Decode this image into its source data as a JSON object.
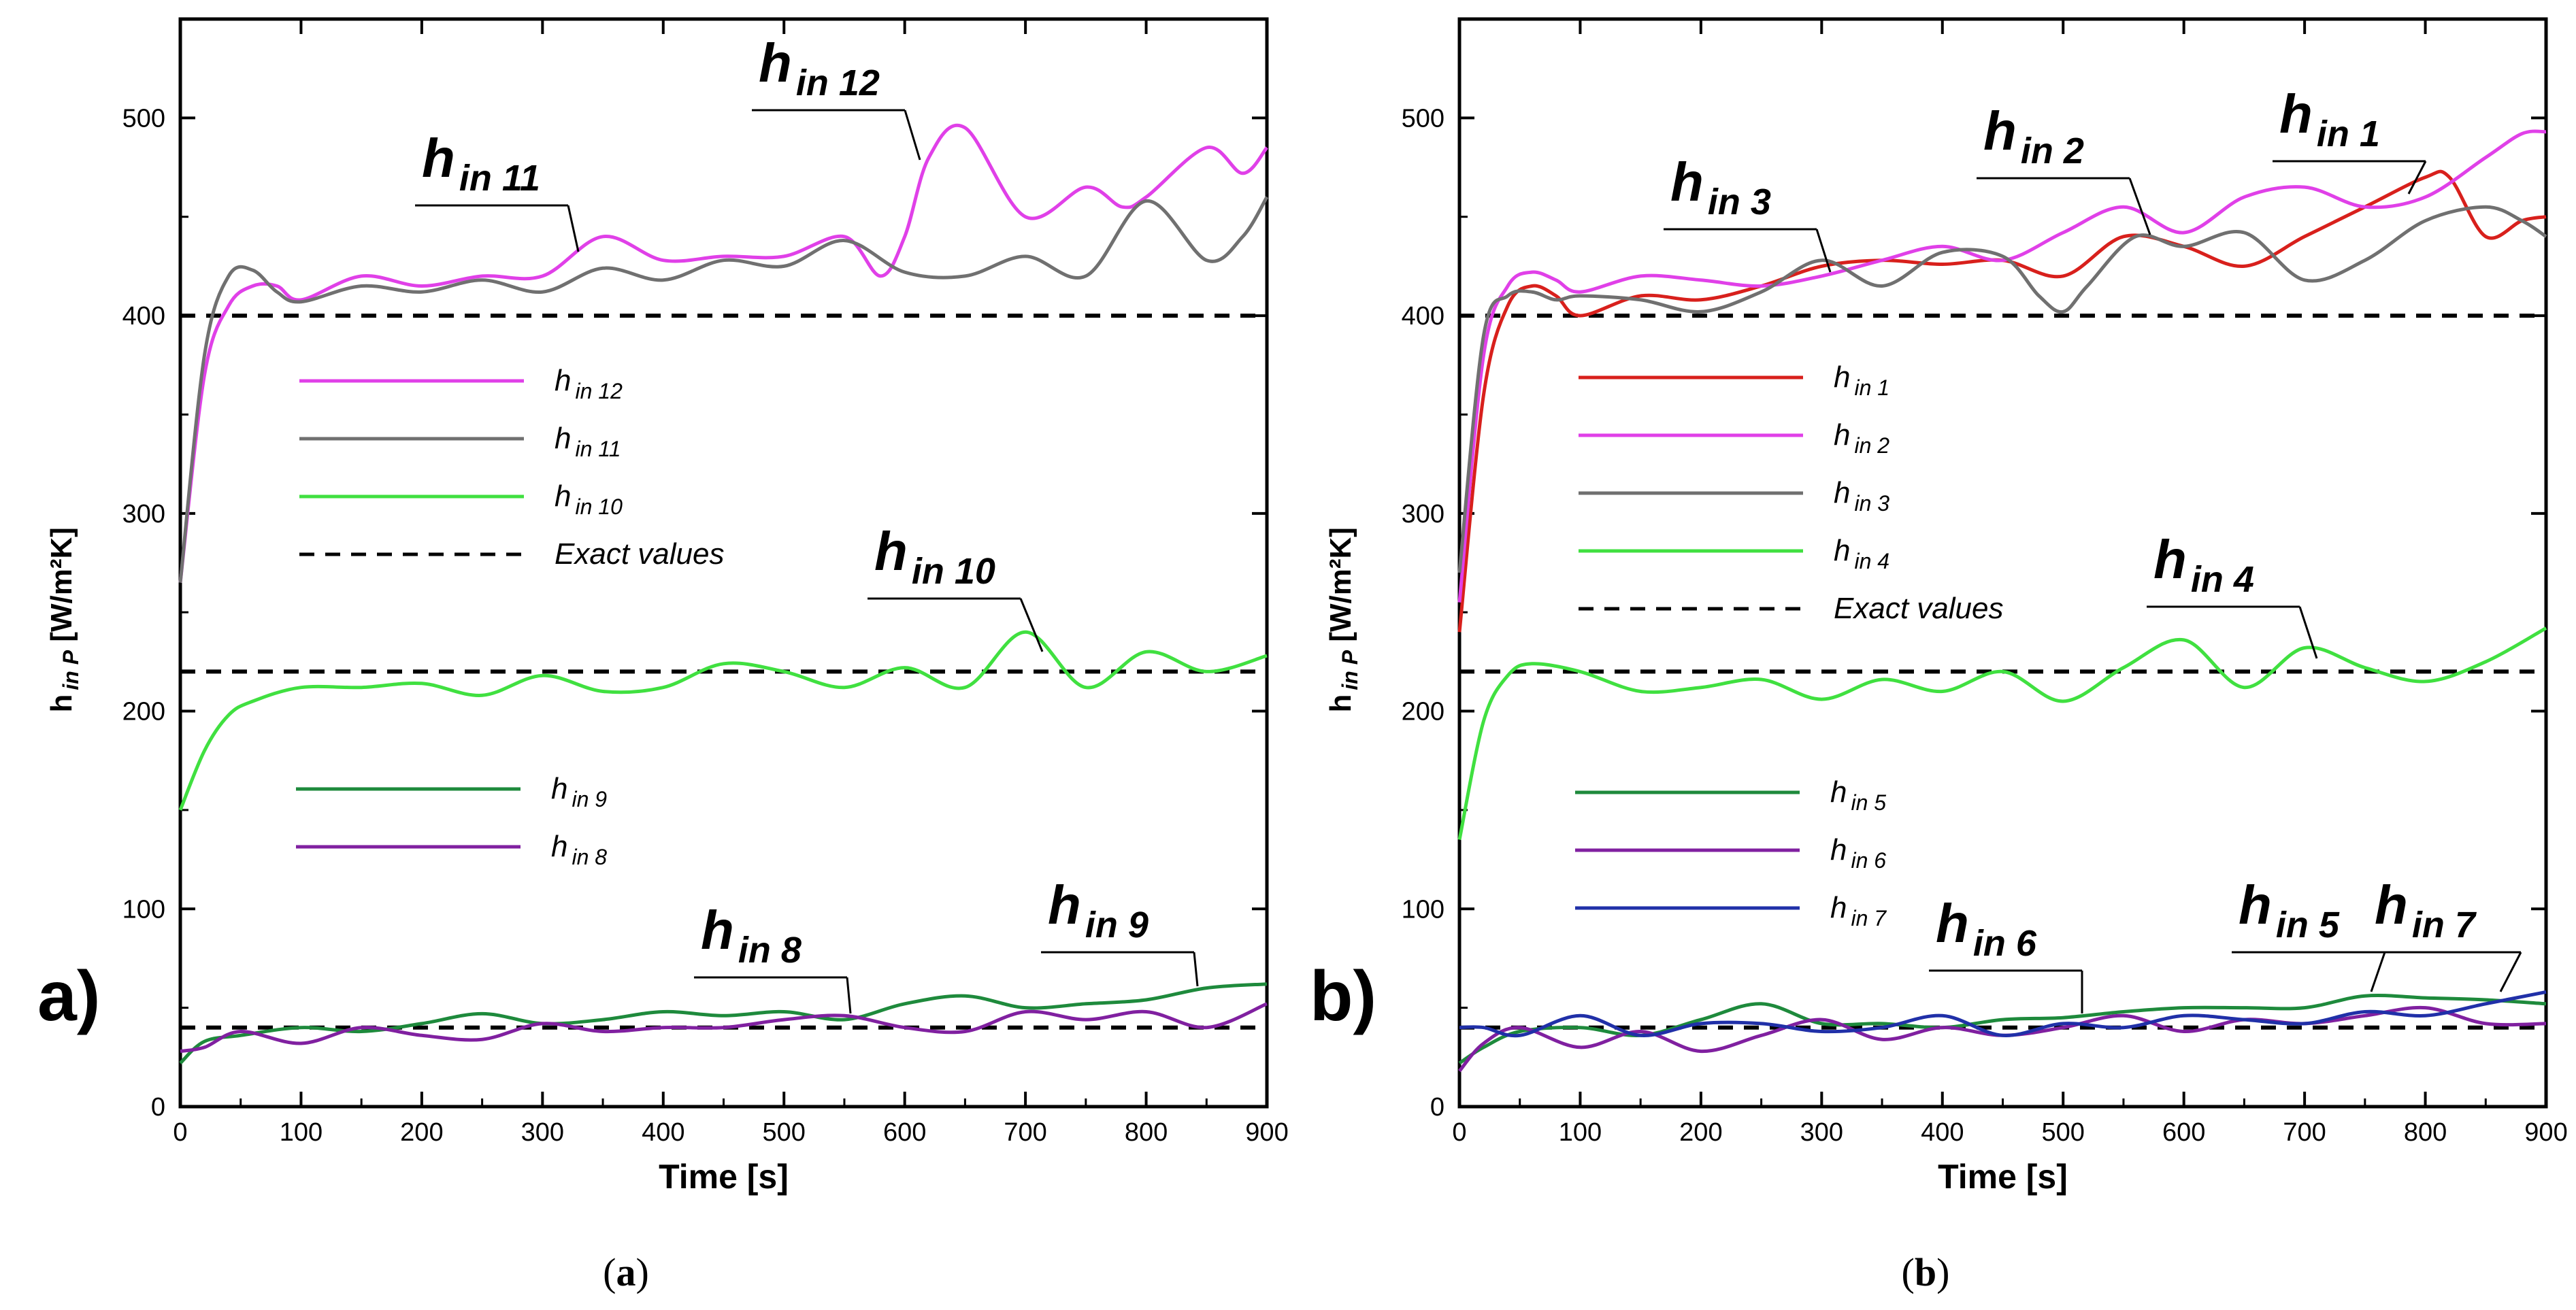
{
  "chart_data": [
    {
      "type": "line",
      "panel_label": "a)",
      "caption": "(a)",
      "xlabel": "Time [s]",
      "ylabel_main": "h",
      "ylabel_sub": "in P",
      "ylabel_unit": " [W/m²K]",
      "xlim": [
        0,
        900
      ],
      "ylim": [
        0,
        550
      ],
      "x_ticks": [
        0,
        100,
        200,
        300,
        400,
        500,
        600,
        700,
        800,
        900
      ],
      "y_ticks": [
        0,
        100,
        200,
        300,
        400,
        500
      ],
      "exact_values": [
        400,
        220,
        40
      ],
      "series": [
        {
          "name": "h_in_12",
          "label_main": "h",
          "label_sub": "in 12",
          "color": "#e040e8",
          "x": [
            0,
            20,
            40,
            60,
            80,
            100,
            150,
            200,
            250,
            300,
            350,
            400,
            450,
            500,
            550,
            580,
            600,
            620,
            650,
            700,
            750,
            780,
            800,
            850,
            880,
            900
          ],
          "y": [
            265,
            370,
            405,
            415,
            415,
            408,
            420,
            415,
            420,
            420,
            440,
            428,
            430,
            430,
            440,
            420,
            440,
            480,
            495,
            450,
            465,
            455,
            460,
            485,
            472,
            485
          ]
        },
        {
          "name": "h_in_11",
          "label_main": "h",
          "label_sub": "in 11",
          "color": "#707070",
          "x": [
            0,
            20,
            40,
            60,
            80,
            100,
            150,
            200,
            250,
            300,
            350,
            400,
            450,
            500,
            550,
            600,
            650,
            700,
            750,
            800,
            850,
            880,
            900
          ],
          "y": [
            265,
            380,
            420,
            423,
            412,
            407,
            415,
            412,
            418,
            412,
            424,
            418,
            428,
            425,
            438,
            422,
            420,
            430,
            420,
            458,
            428,
            440,
            460
          ]
        },
        {
          "name": "h_in_10",
          "label_main": "h",
          "label_sub": "in 10",
          "color": "#40e040",
          "x": [
            0,
            20,
            40,
            60,
            100,
            150,
            200,
            250,
            300,
            350,
            400,
            450,
            500,
            550,
            600,
            650,
            700,
            750,
            800,
            850,
            900
          ],
          "y": [
            150,
            180,
            198,
            205,
            212,
            212,
            214,
            208,
            218,
            210,
            212,
            224,
            220,
            212,
            222,
            212,
            240,
            212,
            230,
            220,
            228
          ]
        },
        {
          "name": "h_in_9",
          "label_main": "h",
          "label_sub": "in 9",
          "color": "#1e8a3c",
          "x": [
            0,
            20,
            50,
            100,
            150,
            200,
            250,
            300,
            350,
            400,
            450,
            500,
            550,
            600,
            650,
            700,
            750,
            800,
            850,
            900
          ],
          "y": [
            22,
            33,
            36,
            40,
            38,
            42,
            47,
            42,
            44,
            48,
            46,
            48,
            44,
            52,
            56,
            50,
            52,
            54,
            60,
            62
          ]
        },
        {
          "name": "h_in_8",
          "label_main": "h",
          "label_sub": "in 8",
          "color": "#8020a0",
          "x": [
            0,
            20,
            50,
            100,
            150,
            200,
            250,
            300,
            350,
            400,
            450,
            500,
            550,
            600,
            650,
            700,
            750,
            800,
            850,
            900
          ],
          "y": [
            28,
            30,
            38,
            32,
            40,
            36,
            34,
            42,
            38,
            40,
            40,
            44,
            46,
            40,
            38,
            48,
            44,
            48,
            40,
            52
          ]
        }
      ],
      "legend_groups": [
        {
          "items": [
            {
              "label_main": "h",
              "label_sub": "in 12",
              "color": "#e040e8",
              "dash": false
            },
            {
              "label_main": "h",
              "label_sub": "in 11",
              "color": "#707070",
              "dash": false
            },
            {
              "label_main": "h",
              "label_sub": "in 10",
              "color": "#40e040",
              "dash": false
            },
            {
              "label_main": "Exact values",
              "label_sub": "",
              "color": "#000000",
              "dash": true
            }
          ]
        },
        {
          "items": [
            {
              "label_main": "h",
              "label_sub": "in 9",
              "color": "#1e8a3c",
              "dash": false
            },
            {
              "label_main": "h",
              "label_sub": "in 8",
              "color": "#8020a0",
              "dash": false
            }
          ]
        }
      ],
      "annotations": [
        {
          "main": "h",
          "sub": "in 11",
          "x": 30,
          "y": 490
        },
        {
          "main": "h",
          "sub": "in 12",
          "x": 275,
          "y": 507
        },
        {
          "main": "h",
          "sub": "in 10",
          "x": 565,
          "y": 270
        },
        {
          "main": "h",
          "sub": "in 8",
          "x": 635,
          "y": 82
        },
        {
          "main": "h",
          "sub": "in 9",
          "x": 775,
          "y": 98
        }
      ]
    },
    {
      "type": "line",
      "panel_label": "b)",
      "caption": "(b)",
      "xlabel": "Time [s]",
      "ylabel_main": "h",
      "ylabel_sub": "in P",
      "ylabel_unit": " [W/m²K]",
      "xlim": [
        0,
        900
      ],
      "ylim": [
        0,
        550
      ],
      "x_ticks": [
        0,
        100,
        200,
        300,
        400,
        500,
        600,
        700,
        800,
        900
      ],
      "y_ticks": [
        0,
        100,
        200,
        300,
        400,
        500
      ],
      "exact_values": [
        400,
        220,
        40
      ],
      "series": [
        {
          "name": "h_in_1",
          "label_main": "h",
          "label_sub": "in 1",
          "color": "#d8201c",
          "x": [
            0,
            20,
            40,
            60,
            80,
            100,
            150,
            200,
            250,
            300,
            350,
            400,
            450,
            500,
            550,
            600,
            650,
            700,
            750,
            800,
            820,
            850,
            880,
            900
          ],
          "y": [
            240,
            360,
            405,
            415,
            410,
            400,
            410,
            408,
            415,
            425,
            428,
            426,
            428,
            420,
            440,
            435,
            425,
            440,
            455,
            470,
            470,
            440,
            448,
            450
          ]
        },
        {
          "name": "h_in_2",
          "label_main": "h",
          "label_sub": "in 2",
          "color": "#e040e8",
          "x": [
            0,
            20,
            40,
            60,
            80,
            100,
            150,
            200,
            250,
            300,
            350,
            400,
            450,
            500,
            550,
            600,
            650,
            700,
            750,
            800,
            850,
            880,
            900
          ],
          "y": [
            255,
            380,
            415,
            422,
            418,
            412,
            420,
            418,
            415,
            420,
            428,
            435,
            428,
            442,
            455,
            442,
            460,
            465,
            455,
            460,
            480,
            492,
            493
          ]
        },
        {
          "name": "h_in_3",
          "label_main": "h",
          "label_sub": "in 3",
          "color": "#707070",
          "x": [
            0,
            20,
            40,
            60,
            80,
            100,
            150,
            200,
            250,
            300,
            350,
            400,
            450,
            480,
            500,
            520,
            560,
            600,
            650,
            700,
            750,
            800,
            850,
            880,
            900
          ],
          "y": [
            270,
            390,
            410,
            412,
            408,
            410,
            408,
            402,
            412,
            428,
            415,
            432,
            430,
            410,
            402,
            415,
            440,
            435,
            442,
            418,
            428,
            448,
            455,
            448,
            440
          ]
        },
        {
          "name": "h_in_4",
          "label_main": "h",
          "label_sub": "in 4",
          "color": "#40e040",
          "x": [
            0,
            20,
            40,
            60,
            100,
            150,
            200,
            250,
            300,
            350,
            400,
            450,
            500,
            550,
            600,
            650,
            700,
            750,
            800,
            850,
            900
          ],
          "y": [
            135,
            195,
            218,
            224,
            220,
            210,
            212,
            216,
            206,
            216,
            210,
            220,
            205,
            222,
            236,
            212,
            232,
            222,
            215,
            225,
            242
          ]
        },
        {
          "name": "h_in_5",
          "label_main": "h",
          "label_sub": "in 5",
          "color": "#1e8a3c",
          "x": [
            0,
            20,
            50,
            100,
            150,
            200,
            250,
            300,
            350,
            400,
            450,
            500,
            550,
            600,
            650,
            700,
            750,
            800,
            850,
            900
          ],
          "y": [
            22,
            30,
            38,
            40,
            36,
            44,
            52,
            42,
            42,
            40,
            44,
            45,
            48,
            50,
            50,
            50,
            56,
            55,
            54,
            52
          ]
        },
        {
          "name": "h_in_6",
          "label_main": "h",
          "label_sub": "in 6",
          "color": "#8020a0",
          "x": [
            0,
            20,
            50,
            100,
            150,
            200,
            250,
            300,
            350,
            400,
            450,
            500,
            550,
            600,
            650,
            700,
            750,
            800,
            850,
            900
          ],
          "y": [
            18,
            32,
            40,
            30,
            38,
            28,
            36,
            44,
            34,
            40,
            36,
            40,
            46,
            38,
            44,
            42,
            46,
            50,
            42,
            42
          ]
        },
        {
          "name": "h_in_7",
          "label_main": "h",
          "label_sub": "in 7",
          "color": "#2030a8",
          "x": [
            0,
            20,
            50,
            100,
            150,
            200,
            250,
            300,
            350,
            400,
            450,
            500,
            550,
            600,
            650,
            700,
            750,
            800,
            850,
            900
          ],
          "y": [
            40,
            40,
            36,
            46,
            36,
            42,
            42,
            38,
            40,
            46,
            36,
            42,
            40,
            46,
            44,
            42,
            48,
            46,
            52,
            58
          ]
        }
      ],
      "legend_groups": [
        {
          "items": [
            {
              "label_main": "h",
              "label_sub": "in 1",
              "color": "#d8201c",
              "dash": false
            },
            {
              "label_main": "h",
              "label_sub": "in 2",
              "color": "#e040e8",
              "dash": false
            },
            {
              "label_main": "h",
              "label_sub": "in 3",
              "color": "#707070",
              "dash": false
            },
            {
              "label_main": "h",
              "label_sub": "in 4",
              "color": "#40e040",
              "dash": false
            },
            {
              "label_main": "Exact values",
              "label_sub": "",
              "color": "#000000",
              "dash": true
            }
          ]
        },
        {
          "items": [
            {
              "label_main": "h",
              "label_sub": "in 5",
              "color": "#1e8a3c",
              "dash": false
            },
            {
              "label_main": "h",
              "label_sub": "in 6",
              "color": "#8020a0",
              "dash": false
            },
            {
              "label_main": "h",
              "label_sub": "in 7",
              "color": "#2030a8",
              "dash": false
            }
          ]
        }
      ],
      "annotations": [
        {
          "main": "h",
          "sub": "in 3",
          "x": 245,
          "y": 475
        },
        {
          "main": "h",
          "sub": "in 2",
          "x": 545,
          "y": 497
        },
        {
          "main": "h",
          "sub": "in 1",
          "x": 770,
          "y": 502
        },
        {
          "main": "h",
          "sub": "in 4",
          "x": 645,
          "y": 265
        },
        {
          "main": "h",
          "sub": "in 6",
          "x": 465,
          "y": 85
        },
        {
          "main": "h",
          "sub": "in 5",
          "x": 700,
          "y": 97
        },
        {
          "main": "h",
          "sub": "in 7",
          "x": 845,
          "y": 97
        }
      ]
    }
  ]
}
